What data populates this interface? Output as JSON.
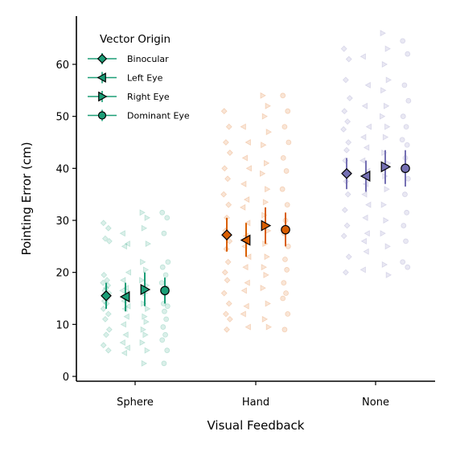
{
  "chart_data": {
    "type": "scatter",
    "title": "",
    "xlabel": "Visual Feedback",
    "ylabel": "Pointing Error (cm)",
    "categories": [
      "Sphere",
      "Hand",
      "None"
    ],
    "ylim": [
      -1,
      69
    ],
    "yticks": [
      0,
      10,
      20,
      30,
      40,
      50,
      60
    ],
    "grid": false,
    "legend": {
      "title": "Vector Origin",
      "placement": "top-left",
      "entries": [
        "Binocular",
        "Left Eye",
        "Right Eye",
        "Dominant Eye"
      ]
    },
    "category_colors": {
      "Sphere": "#1b9e77",
      "Hand": "#d95f02",
      "None": "#7570b3"
    },
    "marker_shapes": {
      "Binocular": "diamond",
      "Left Eye": "triangle-left",
      "Right Eye": "triangle-right",
      "Dominant Eye": "circle"
    },
    "series": [
      {
        "name": "Binocular",
        "means": [
          15.5,
          27.2,
          39.0
        ],
        "ci_low": [
          13.0,
          24.0,
          36.0
        ],
        "ci_high": [
          18.0,
          30.5,
          42.0
        ]
      },
      {
        "name": "Left Eye",
        "means": [
          15.3,
          26.2,
          38.5
        ],
        "ci_low": [
          12.5,
          23.0,
          35.5
        ],
        "ci_high": [
          18.0,
          29.5,
          41.5
        ]
      },
      {
        "name": "Right Eye",
        "means": [
          16.7,
          29.0,
          40.3
        ],
        "ci_low": [
          13.5,
          25.5,
          37.0
        ],
        "ci_high": [
          20.0,
          32.5,
          43.5
        ]
      },
      {
        "name": "Dominant Eye",
        "means": [
          16.5,
          28.2,
          40.0
        ],
        "ci_low": [
          14.0,
          25.0,
          36.5
        ],
        "ci_high": [
          19.0,
          31.5,
          43.5
        ]
      }
    ],
    "individual_points": {
      "Sphere": {
        "Binocular": [
          29.5,
          28.5,
          26.5,
          26,
          19.5,
          18.5,
          18,
          17.5,
          17,
          16.5,
          16,
          15.5,
          15,
          14.5,
          14,
          13,
          12,
          11,
          9,
          8,
          6,
          5
        ],
        "Left Eye": [
          27.5,
          25.5,
          25,
          20,
          18.5,
          17,
          16.5,
          16,
          15,
          14.5,
          13.5,
          13,
          11.5,
          10,
          8,
          6.5,
          5.5,
          4.5
        ],
        "Right Eye": [
          31.5,
          30.5,
          28.5,
          25.5,
          22,
          20.5,
          18.5,
          17.5,
          16,
          14,
          13,
          11.5,
          10.5,
          9,
          8,
          6.5,
          5,
          2.5
        ],
        "Dominant Eye": [
          31.5,
          30.5,
          27.5,
          22,
          21,
          19.5,
          18,
          17,
          16,
          14,
          13.5,
          12.5,
          11,
          9.5,
          8,
          7,
          5,
          2.5
        ]
      },
      "Hand": {
        "Binocular": [
          51,
          48,
          45,
          43,
          40,
          38,
          35,
          33,
          30.5,
          28,
          26,
          24.5,
          22,
          20,
          18.5,
          16,
          14,
          12,
          11,
          9
        ],
        "Left Eye": [
          48,
          45,
          42,
          40,
          37,
          34,
          32.5,
          29.5,
          27,
          25,
          23,
          21,
          18,
          16.5,
          13.5,
          12,
          9.5
        ],
        "Right Eye": [
          54,
          52,
          50,
          47,
          44.5,
          41,
          39,
          36,
          33.5,
          31,
          28,
          25.5,
          23,
          21,
          19.5,
          17,
          14,
          11,
          9.5
        ],
        "Dominant Eye": [
          54,
          51,
          48,
          45,
          42,
          39.5,
          36,
          33,
          30,
          27.5,
          25,
          22.5,
          20.5,
          18,
          16,
          15,
          12,
          9
        ]
      },
      "None": {
        "Binocular": [
          63,
          61,
          57,
          53.5,
          51,
          49,
          47.5,
          45,
          43.5,
          41.5,
          39,
          37.5,
          35,
          32,
          29,
          27,
          23,
          20
        ],
        "Left Eye": [
          61.5,
          56,
          52,
          48,
          46,
          44,
          41.5,
          39.5,
          37,
          35,
          33,
          30.5,
          27.5,
          26,
          24,
          20.5
        ],
        "Right Eye": [
          66,
          63,
          60,
          57,
          55,
          52,
          50,
          48,
          46,
          43,
          41,
          38.5,
          36,
          33,
          30,
          27.5,
          25,
          21.5,
          19.5
        ],
        "Dominant Eye": [
          64.5,
          62,
          56,
          53,
          50,
          48,
          45.5,
          44.5,
          42,
          39.5,
          38,
          35,
          31.5,
          29,
          26,
          22,
          21
        ]
      }
    }
  }
}
